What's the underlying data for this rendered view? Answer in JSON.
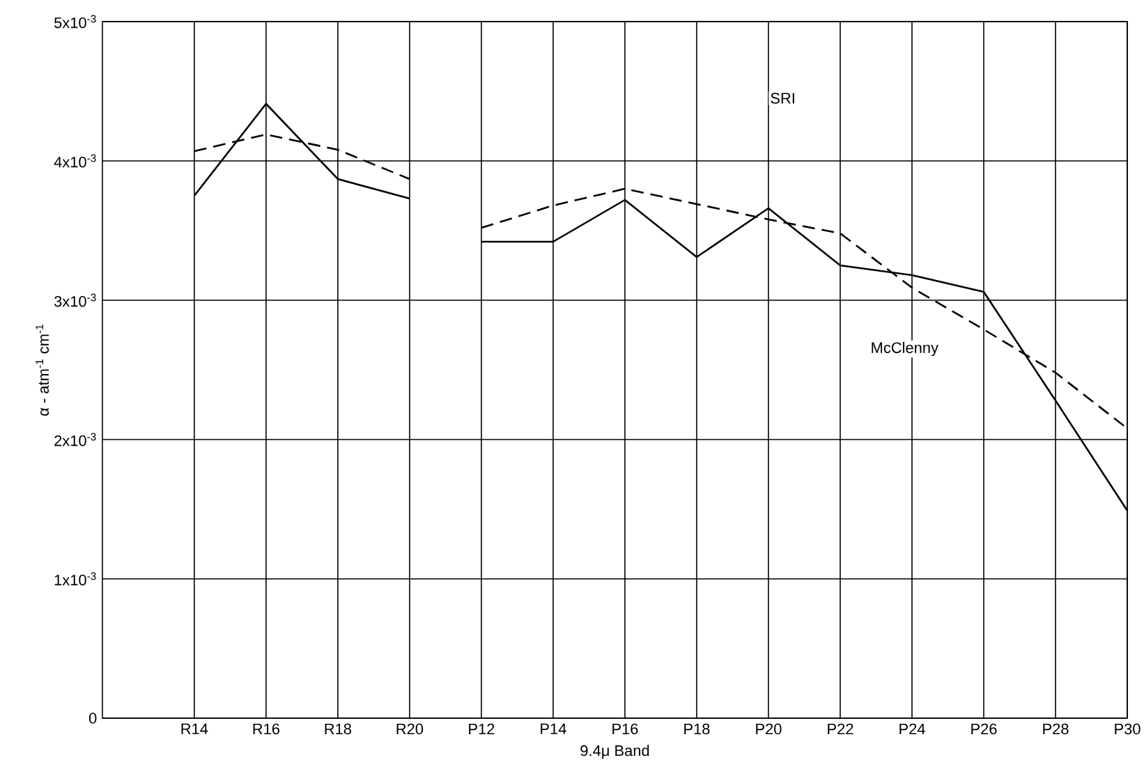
{
  "chart_data": {
    "type": "line",
    "xlabel": "9.4μ Band",
    "ylabel": "α - atm$^{-1}$ cm$^{-1}$",
    "categories": [
      "R14",
      "R16",
      "R18",
      "R20",
      "P12",
      "P14",
      "P16",
      "P18",
      "P20",
      "P22",
      "P24",
      "P26",
      "P28",
      "P30"
    ],
    "series": [
      {
        "name": "SRI",
        "color": "#000000",
        "line_style": "dashed",
        "values": [
          0.00407,
          0.00419,
          0.00408,
          0.00387,
          null,
          null,
          null,
          null,
          null,
          null,
          null,
          null,
          null,
          null
        ]
      },
      {
        "color": "#000000",
        "line_style": "dashed",
        "values": [
          null,
          null,
          null,
          null,
          0.00352,
          0.00368,
          0.0038,
          0.00369,
          0.00358,
          0.00348,
          0.00309,
          0.00279,
          0.00248,
          0.00208
        ]
      },
      {
        "name": "McClenny",
        "color": "#000000",
        "line_style": "solid",
        "values": [
          0.00375,
          0.00441,
          0.00387,
          0.00373,
          null,
          null,
          null,
          null,
          null,
          null,
          null,
          null,
          null,
          null
        ]
      },
      {
        "color": "#000000",
        "line_style": "solid",
        "values": [
          null,
          null,
          null,
          null,
          0.00342,
          0.00342,
          0.00372,
          0.00331,
          0.00366,
          0.00325,
          0.00318,
          0.00306,
          0.00228,
          0.00149
        ]
      }
    ],
    "ylim": [
      0,
      0.005
    ],
    "yticks": [
      0,
      {
        "value": 0.001,
        "label": "1x10$^{-3}$"
      },
      {
        "value": 0.002,
        "label": "2x10$^{-3}$"
      },
      {
        "value": 0.003,
        "label": "3x10$^{-3}$"
      },
      {
        "value": 0.004,
        "label": "4x10$^{-3}$"
      },
      {
        "value": 0.005,
        "label": "5x10$^{-3}$"
      }
    ],
    "grid": true,
    "legend": false,
    "marker": "none"
  }
}
